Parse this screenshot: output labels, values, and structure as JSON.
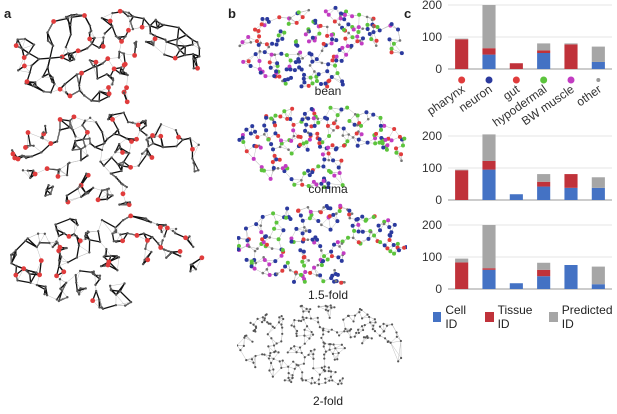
{
  "panels": {
    "a": "a",
    "b": "b",
    "c": "c"
  },
  "stage_labels": [
    "bean",
    "comma",
    "1.5-fold",
    "2-fold"
  ],
  "colors": {
    "cell_id": "#4472c4",
    "tissue_id": "#c0323a",
    "predicted_id": "#a6a6a6",
    "pharynx": "#e03c3c",
    "neuron": "#2b3a9e",
    "gut": "#e03c3c",
    "hypodermal": "#5cc43c",
    "bw_muscle": "#c23cc2",
    "other": "#999999"
  },
  "chart_data": [
    {
      "type": "bar",
      "stacked": true,
      "categories": [
        "pharynx",
        "neuron",
        "gut",
        "hypodermal",
        "BW muscle",
        "other"
      ],
      "series": [
        {
          "name": "Cell ID",
          "values": [
            0,
            45,
            0,
            50,
            0,
            22
          ]
        },
        {
          "name": "Tissue ID",
          "values": [
            93,
            20,
            18,
            8,
            77,
            0
          ]
        },
        {
          "name": "Predicted ID",
          "values": [
            2,
            135,
            0,
            22,
            3,
            48
          ]
        }
      ],
      "ylim": [
        0,
        200
      ],
      "yticks": [
        0,
        100,
        200
      ],
      "show_category_labels": true
    },
    {
      "type": "bar",
      "stacked": true,
      "categories": [
        "pharynx",
        "neuron",
        "gut",
        "hypodermal",
        "BW muscle",
        "other"
      ],
      "series": [
        {
          "name": "Cell ID",
          "values": [
            0,
            95,
            18,
            42,
            38,
            38
          ]
        },
        {
          "name": "Tissue ID",
          "values": [
            93,
            27,
            0,
            15,
            43,
            0
          ]
        },
        {
          "name": "Predicted ID",
          "values": [
            2,
            83,
            0,
            24,
            0,
            33
          ]
        }
      ],
      "ylim": [
        0,
        200
      ],
      "yticks": [
        0,
        100,
        200
      ],
      "show_category_labels": false
    },
    {
      "type": "bar",
      "stacked": true,
      "categories": [
        "pharynx",
        "neuron",
        "gut",
        "hypodermal",
        "BW muscle",
        "other"
      ],
      "series": [
        {
          "name": "Cell ID",
          "values": [
            0,
            60,
            18,
            40,
            75,
            15
          ]
        },
        {
          "name": "Tissue ID",
          "values": [
            83,
            5,
            0,
            20,
            0,
            0
          ]
        },
        {
          "name": "Predicted ID",
          "values": [
            12,
            135,
            0,
            22,
            0,
            55
          ]
        }
      ],
      "ylim": [
        0,
        200
      ],
      "yticks": [
        0,
        100,
        200
      ],
      "show_category_labels": false
    }
  ],
  "legend": [
    "Cell ID",
    "Tissue ID",
    "Predicted ID"
  ]
}
